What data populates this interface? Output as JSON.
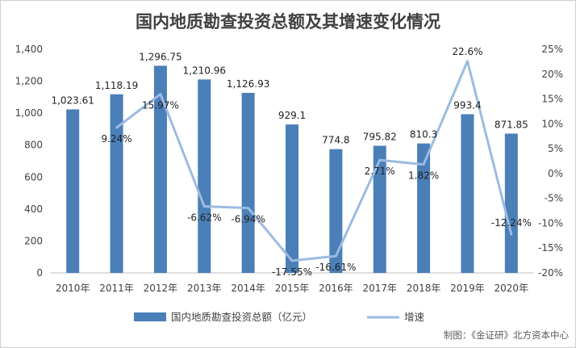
{
  "chart_data": {
    "type": "bar",
    "title": "国内地质勘查投资总额及其增速变化情况",
    "categories": [
      "2010年",
      "2011年",
      "2012年",
      "2013年",
      "2014年",
      "2015年",
      "2016年",
      "2017年",
      "2018年",
      "2019年",
      "2020年"
    ],
    "series": [
      {
        "name": "国内地质勘查投资总额（亿元）",
        "type": "bar",
        "axis": "left",
        "color": "#4a7fb8",
        "values": [
          1023.61,
          1118.19,
          1296.75,
          1210.96,
          1126.93,
          929.1,
          774.8,
          795.82,
          810.3,
          993.4,
          871.85
        ],
        "labels": [
          "1,023.61",
          "1,118.19",
          "1,296.75",
          "1,210.96",
          "1,126.93",
          "929.1",
          "774.8",
          "795.82",
          "810.3",
          "993.4",
          "871.85"
        ]
      },
      {
        "name": "增速",
        "type": "line",
        "axis": "right",
        "color": "#9dbbe0",
        "values": [
          null,
          9.24,
          15.97,
          -6.62,
          -6.94,
          -17.55,
          -16.61,
          2.71,
          1.82,
          22.6,
          -12.24
        ],
        "labels": [
          "",
          "9.24%",
          "15.97%",
          "-6.62%",
          "-6.94%",
          "-17.55%",
          "-16.61%",
          "2.71%",
          "1.82%",
          "22.6%",
          "-12.24%"
        ]
      }
    ],
    "y_left": {
      "min": 0,
      "max": 1400,
      "ticks": [
        0,
        200,
        400,
        600,
        800,
        1000,
        1200,
        1400
      ],
      "tick_labels": [
        "0",
        "200",
        "400",
        "600",
        "800",
        "1,000",
        "1,200",
        "1,400"
      ]
    },
    "y_right": {
      "min": -20,
      "max": 25,
      "ticks": [
        -20,
        -15,
        -10,
        -5,
        0,
        5,
        10,
        15,
        20,
        25
      ],
      "tick_labels": [
        "-20%",
        "-15%",
        "-10%",
        "-5%",
        "0%",
        "5%",
        "10%",
        "15%",
        "20%",
        "25%"
      ]
    },
    "grid": false,
    "legend_position": "bottom",
    "credit": "制图：《金证研》北方资本中心"
  }
}
